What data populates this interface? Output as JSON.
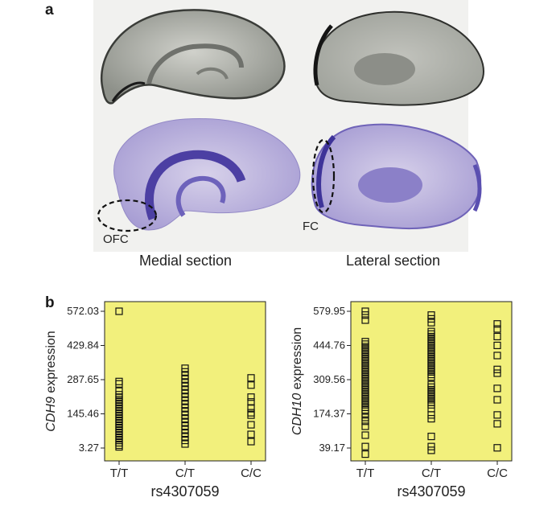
{
  "panel_a": {
    "letter": "a",
    "images": [
      {
        "name": "medial-grey-section"
      },
      {
        "name": "lateral-grey-section"
      },
      {
        "name": "medial-purple-section"
      },
      {
        "name": "lateral-purple-section"
      }
    ],
    "annotations": [
      "OFC",
      "FC"
    ],
    "captions": [
      "Medial section",
      "Lateral section"
    ]
  },
  "panel_b": {
    "letter": "b"
  },
  "chart_data": [
    {
      "type": "scatter",
      "ylabel_gene": "CDH9",
      "ylabel_rest": " expression",
      "xlabel": "rs4307059",
      "categories": [
        "T/T",
        "C/T",
        "C/C"
      ],
      "yticks": [
        "572.03",
        "429.84",
        "287.65",
        "145.46",
        "3.27"
      ],
      "ylim": [
        3.27,
        572.03
      ],
      "background": "#f2f07c",
      "series": [
        {
          "category": "T/T",
          "values": [
            572.03,
            280,
            270,
            240,
            225,
            215,
            205,
            195,
            185,
            175,
            165,
            155,
            145,
            135,
            125,
            115,
            105,
            95,
            85,
            75,
            65,
            55,
            45,
            35,
            25,
            15,
            8
          ]
        },
        {
          "category": "C/T",
          "values": [
            335,
            320,
            305,
            290,
            275,
            260,
            245,
            230,
            215,
            200,
            185,
            170,
            155,
            140,
            125,
            110,
            95,
            80,
            65,
            50,
            35,
            20
          ]
        },
        {
          "category": "C/C",
          "values": [
            295,
            265,
            215,
            195,
            170,
            150,
            140,
            100,
            60,
            30
          ]
        }
      ]
    },
    {
      "type": "scatter",
      "ylabel_gene": "CDH10",
      "ylabel_rest": " expression",
      "xlabel": "rs4307059",
      "categories": [
        "T/T",
        "C/T",
        "C/C"
      ],
      "yticks": [
        "579.95",
        "444.76",
        "309.56",
        "174.37",
        "39.17"
      ],
      "ylim": [
        39.17,
        579.95
      ],
      "background": "#f2f07c",
      "series": [
        {
          "category": "T/T",
          "values": [
            579.95,
            565,
            545,
            460,
            450,
            440,
            430,
            420,
            410,
            400,
            390,
            380,
            370,
            360,
            350,
            340,
            330,
            320,
            310,
            300,
            290,
            280,
            270,
            260,
            250,
            240,
            230,
            220,
            210,
            200,
            190,
            175,
            160,
            145,
            125,
            90,
            45,
            15
          ]
        },
        {
          "category": "C/T",
          "values": [
            565,
            550,
            535,
            500,
            490,
            480,
            470,
            460,
            450,
            440,
            430,
            420,
            410,
            400,
            390,
            380,
            370,
            360,
            350,
            340,
            330,
            320,
            290,
            280,
            270,
            260,
            250,
            240,
            230,
            220,
            210,
            195,
            170,
            155,
            85,
            45,
            30
          ]
        },
        {
          "category": "C/C",
          "values": [
            530,
            510,
            480,
            445,
            405,
            350,
            335,
            275,
            230,
            170,
            135,
            40
          ]
        }
      ]
    }
  ]
}
